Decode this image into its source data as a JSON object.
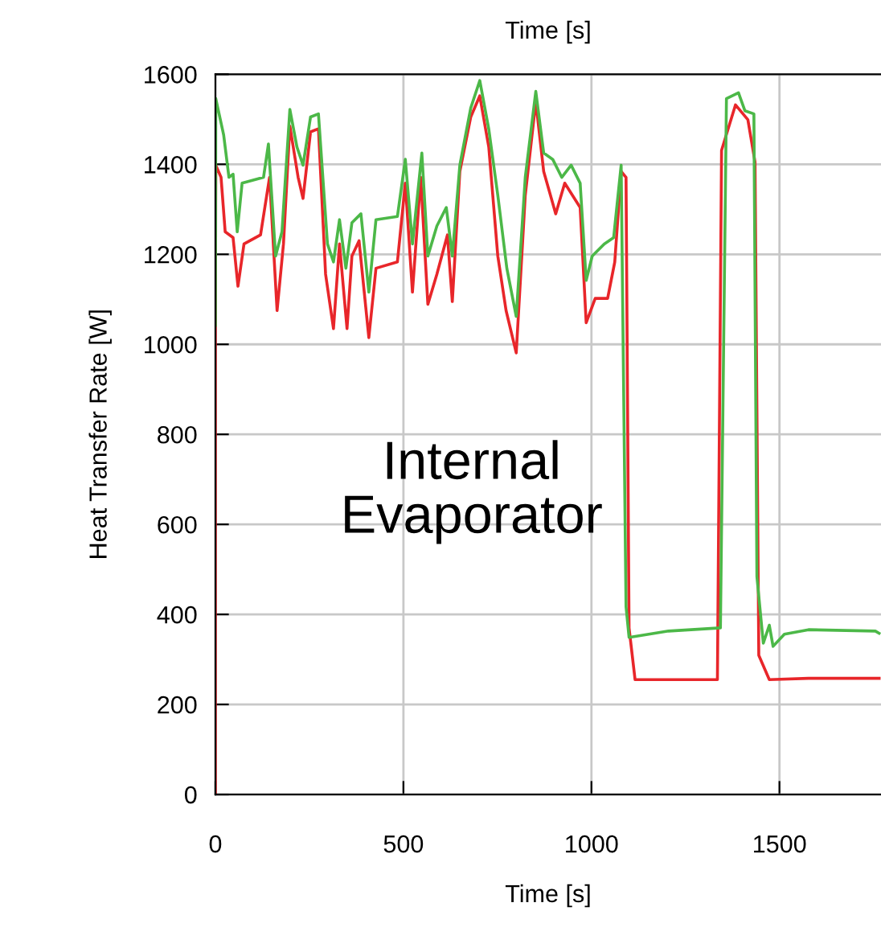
{
  "chart_data": {
    "type": "line",
    "title": "Time [s]",
    "xlabel": "Time [s]",
    "ylabel": "Heat Transfer Rate [W]",
    "annotations": [
      "Internal\nEvaporator"
    ],
    "xlim": [
      0,
      1770
    ],
    "xticks": [
      0,
      500,
      1000,
      1500
    ],
    "ylim": [
      0,
      1600
    ],
    "yticks": [
      0,
      200,
      400,
      600,
      800,
      1000,
      1200,
      1400,
      1600
    ],
    "grid": true,
    "legend": false,
    "marker": "none",
    "line_style": "solid",
    "series": [
      {
        "color": "#e8262a",
        "x": [
          0,
          0,
          1,
          15,
          26,
          47,
          60,
          76,
          120,
          144,
          164,
          181,
          198,
          220,
          233,
          253,
          274,
          293,
          314,
          330,
          350,
          363,
          382,
          408,
          427,
          484,
          505,
          524,
          546,
          565,
          589,
          617,
          630,
          650,
          679,
          703,
          727,
          751,
          773,
          800,
          824,
          852,
          873,
          905,
          929,
          970,
          986,
          1010,
          1043,
          1062,
          1079,
          1092,
          1100,
          1116,
          1335,
          1346,
          1383,
          1416,
          1435,
          1445,
          1473,
          1577,
          1765
        ],
        "values": [
          0,
          1042,
          1398,
          1371,
          1250,
          1237,
          1129,
          1223,
          1243,
          1371,
          1075,
          1223,
          1485,
          1371,
          1324,
          1472,
          1479,
          1156,
          1035,
          1223,
          1035,
          1196,
          1230,
          1015,
          1169,
          1183,
          1358,
          1116,
          1371,
          1089,
          1156,
          1243,
          1095,
          1384,
          1505,
          1552,
          1438,
          1196,
          1075,
          981,
          1331,
          1539,
          1384,
          1290,
          1358,
          1304,
          1048,
          1102,
          1102,
          1183,
          1384,
          1371,
          370,
          255,
          255,
          1431,
          1532,
          1499,
          1405,
          309,
          255,
          258,
          258
        ]
      },
      {
        "color": "#4cb848",
        "x": [
          0,
          1,
          22,
          36,
          47,
          58,
          71,
          128,
          141,
          160,
          177,
          198,
          217,
          233,
          253,
          274,
          298,
          314,
          330,
          347,
          363,
          387,
          408,
          427,
          484,
          505,
          524,
          549,
          565,
          589,
          614,
          630,
          650,
          679,
          703,
          727,
          751,
          775,
          800,
          824,
          852,
          873,
          897,
          921,
          946,
          970,
          986,
          1002,
          1034,
          1059,
          1079,
          1092,
          1100,
          1205,
          1343,
          1359,
          1391,
          1408,
          1432,
          1440,
          1457,
          1473,
          1483,
          1513,
          1577,
          1755,
          1765
        ],
        "values": [
          1042,
          1546,
          1465,
          1371,
          1378,
          1250,
          1358,
          1371,
          1445,
          1196,
          1250,
          1522,
          1438,
          1398,
          1505,
          1512,
          1223,
          1183,
          1277,
          1169,
          1270,
          1290,
          1116,
          1277,
          1284,
          1411,
          1223,
          1425,
          1196,
          1263,
          1304,
          1196,
          1398,
          1525,
          1586,
          1478,
          1331,
          1169,
          1062,
          1371,
          1562,
          1425,
          1411,
          1371,
          1398,
          1358,
          1142,
          1196,
          1223,
          1237,
          1398,
          417,
          349,
          363,
          370,
          1546,
          1559,
          1519,
          1512,
          484,
          336,
          376,
          329,
          356,
          366,
          363,
          358
        ]
      }
    ]
  }
}
